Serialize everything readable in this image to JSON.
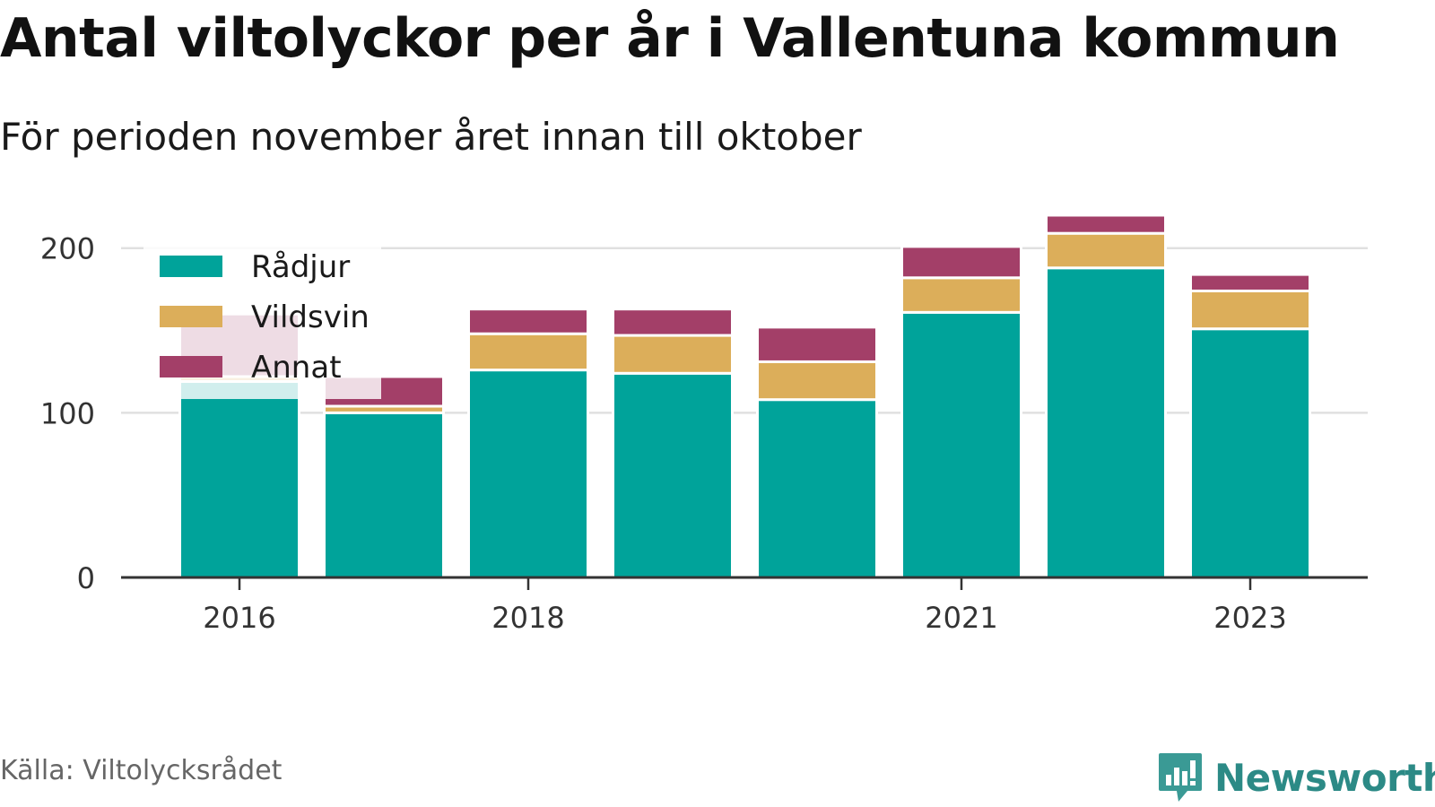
{
  "title": "Antal viltolyckor per år i Vallentuna kommun",
  "subtitle": "För perioden november året innan till oktober",
  "source": "Källa: Viltolycksrådet",
  "brand": "Newsworthy",
  "icons": {
    "logo": "newsworthy-bar-chart-icon"
  },
  "colors": {
    "Rådjur": "#00a39a",
    "Vildsvin": "#dcae5a",
    "Annat": "#a33f68",
    "grid": "#e0e0e0",
    "axis": "#333333",
    "brand": "#2c8a86"
  },
  "chart_data": {
    "type": "bar",
    "stacked": true,
    "categories": [
      "2016",
      "2017",
      "2018",
      "2019",
      "2020",
      "2021",
      "2022",
      "2023"
    ],
    "x_tick_labels": [
      "2016",
      "2018",
      "2021",
      "2023"
    ],
    "series": [
      {
        "name": "Rådjur",
        "values": [
          119,
          100,
          126,
          124,
          108,
          161,
          188,
          151
        ]
      },
      {
        "name": "Vildsvin",
        "values": [
          3,
          4,
          22,
          23,
          23,
          21,
          21,
          23
        ]
      },
      {
        "name": "Annat",
        "values": [
          38,
          18,
          15,
          16,
          21,
          19,
          11,
          10
        ]
      }
    ],
    "ylim": [
      0,
      220
    ],
    "yticks": [
      0,
      100,
      200
    ],
    "grid": true,
    "legend": "top-left",
    "xlabel": "",
    "ylabel": ""
  }
}
